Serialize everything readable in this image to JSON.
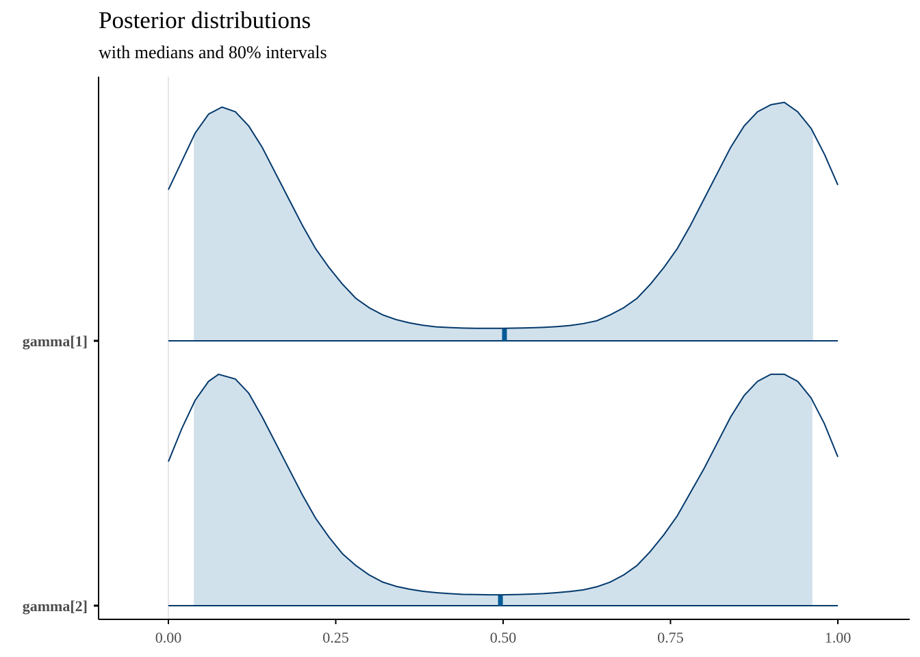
{
  "chart_data": {
    "type": "area",
    "title": "Posterior distributions",
    "subtitle": "with medians and 80% intervals",
    "xlim": [
      -0.1,
      1.1
    ],
    "x_ticks": [
      "0.00",
      "0.25",
      "0.50",
      "0.75",
      "1.00"
    ],
    "x_tick_values": [
      0,
      0.25,
      0.5,
      0.75,
      1.0
    ],
    "vline_at": 0,
    "colors": {
      "line": "#03396c",
      "fill": "#d1e1ec",
      "median": "#005b96",
      "vline": "#e6e6e6",
      "axis": "#000000"
    },
    "series": [
      {
        "name": "gamma[1]",
        "median": 0.502,
        "interval_80": [
          0.038,
          0.963
        ],
        "density_relative": [
          [
            0.0,
            0.64
          ],
          [
            0.02,
            0.76
          ],
          [
            0.04,
            0.88
          ],
          [
            0.06,
            0.96
          ],
          [
            0.08,
            0.99
          ],
          [
            0.1,
            0.97
          ],
          [
            0.12,
            0.91
          ],
          [
            0.14,
            0.82
          ],
          [
            0.16,
            0.71
          ],
          [
            0.18,
            0.6
          ],
          [
            0.2,
            0.49
          ],
          [
            0.22,
            0.39
          ],
          [
            0.24,
            0.31
          ],
          [
            0.26,
            0.24
          ],
          [
            0.28,
            0.18
          ],
          [
            0.3,
            0.14
          ],
          [
            0.32,
            0.11
          ],
          [
            0.34,
            0.09
          ],
          [
            0.36,
            0.076
          ],
          [
            0.38,
            0.066
          ],
          [
            0.4,
            0.059
          ],
          [
            0.42,
            0.056
          ],
          [
            0.44,
            0.054
          ],
          [
            0.46,
            0.053
          ],
          [
            0.48,
            0.053
          ],
          [
            0.5,
            0.053
          ],
          [
            0.52,
            0.054
          ],
          [
            0.54,
            0.055
          ],
          [
            0.56,
            0.057
          ],
          [
            0.58,
            0.06
          ],
          [
            0.6,
            0.065
          ],
          [
            0.62,
            0.073
          ],
          [
            0.64,
            0.085
          ],
          [
            0.66,
            0.11
          ],
          [
            0.68,
            0.14
          ],
          [
            0.7,
            0.18
          ],
          [
            0.72,
            0.24
          ],
          [
            0.74,
            0.31
          ],
          [
            0.76,
            0.39
          ],
          [
            0.78,
            0.49
          ],
          [
            0.8,
            0.6
          ],
          [
            0.82,
            0.71
          ],
          [
            0.84,
            0.82
          ],
          [
            0.86,
            0.91
          ],
          [
            0.88,
            0.97
          ],
          [
            0.9,
            1.0
          ],
          [
            0.92,
            1.01
          ],
          [
            0.94,
            0.97
          ],
          [
            0.96,
            0.9
          ],
          [
            0.98,
            0.79
          ],
          [
            1.0,
            0.66
          ]
        ]
      },
      {
        "name": "gamma[2]",
        "median": 0.496,
        "interval_80": [
          0.038,
          0.962
        ],
        "density_relative": [
          [
            0.0,
            0.61
          ],
          [
            0.02,
            0.75
          ],
          [
            0.04,
            0.87
          ],
          [
            0.06,
            0.95
          ],
          [
            0.075,
            0.98
          ],
          [
            0.1,
            0.96
          ],
          [
            0.12,
            0.9
          ],
          [
            0.14,
            0.8
          ],
          [
            0.16,
            0.69
          ],
          [
            0.18,
            0.58
          ],
          [
            0.2,
            0.47
          ],
          [
            0.22,
            0.37
          ],
          [
            0.24,
            0.29
          ],
          [
            0.26,
            0.22
          ],
          [
            0.28,
            0.17
          ],
          [
            0.3,
            0.13
          ],
          [
            0.32,
            0.1
          ],
          [
            0.34,
            0.082
          ],
          [
            0.36,
            0.07
          ],
          [
            0.38,
            0.061
          ],
          [
            0.4,
            0.055
          ],
          [
            0.42,
            0.051
          ],
          [
            0.44,
            0.048
          ],
          [
            0.46,
            0.047
          ],
          [
            0.48,
            0.046
          ],
          [
            0.5,
            0.046
          ],
          [
            0.52,
            0.047
          ],
          [
            0.54,
            0.049
          ],
          [
            0.56,
            0.051
          ],
          [
            0.58,
            0.055
          ],
          [
            0.6,
            0.06
          ],
          [
            0.62,
            0.067
          ],
          [
            0.64,
            0.08
          ],
          [
            0.66,
            0.1
          ],
          [
            0.68,
            0.13
          ],
          [
            0.7,
            0.17
          ],
          [
            0.72,
            0.23
          ],
          [
            0.74,
            0.3
          ],
          [
            0.76,
            0.38
          ],
          [
            0.78,
            0.48
          ],
          [
            0.8,
            0.58
          ],
          [
            0.82,
            0.69
          ],
          [
            0.84,
            0.8
          ],
          [
            0.86,
            0.89
          ],
          [
            0.88,
            0.95
          ],
          [
            0.9,
            0.98
          ],
          [
            0.92,
            0.98
          ],
          [
            0.94,
            0.95
          ],
          [
            0.96,
            0.88
          ],
          [
            0.98,
            0.77
          ],
          [
            1.0,
            0.63
          ]
        ]
      }
    ]
  }
}
